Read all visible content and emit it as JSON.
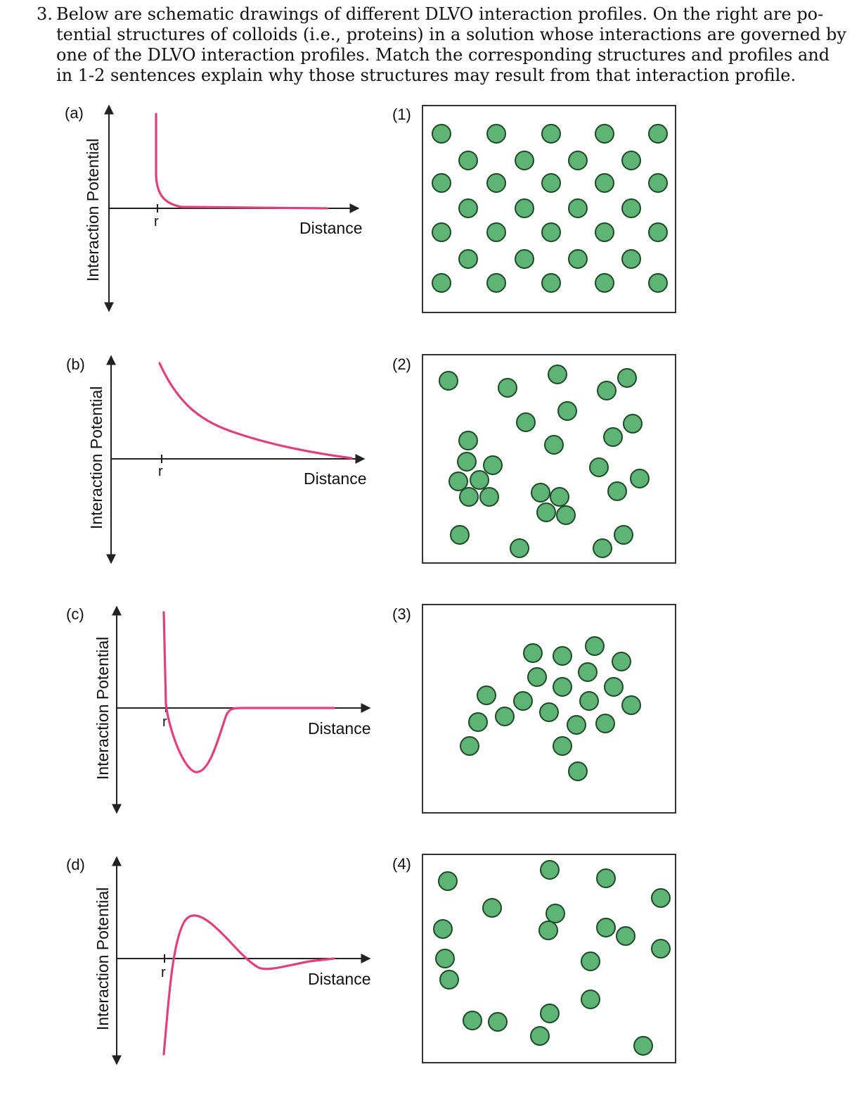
{
  "question": {
    "number": "3.",
    "lines": [
      "Below are schematic drawings of different DLVO interaction profiles. On the right are po-",
      "tential structures of colloids (i.e., proteins) in a solution whose interactions are governed by",
      "one of the DLVO interaction profiles. Match the corresponding structures and profiles and",
      "in 1-2 sentences explain why those structures may result from that interaction profile."
    ]
  },
  "profiles": [
    {
      "label": "(a)",
      "y_axis_label": "Interaction Potential",
      "x_axis_label": "Distance",
      "tick_label": "r",
      "shape": "pure repulsion (hard core)"
    },
    {
      "label": "(b)",
      "y_axis_label": "Interaction Potential",
      "x_axis_label": "Distance",
      "tick_label": "r",
      "shape": "long-range soft repulsion"
    },
    {
      "label": "(c)",
      "y_axis_label": "Interaction Potential",
      "x_axis_label": "Distance",
      "tick_label": "r",
      "shape": "deep attractive well"
    },
    {
      "label": "(d)",
      "y_axis_label": "Interaction Potential",
      "x_axis_label": "Distance",
      "tick_label": "r",
      "shape": "energy barrier with shallow secondary minimum"
    }
  ],
  "structures": [
    {
      "label": "(1)",
      "arrangement": "ordered lattice"
    },
    {
      "label": "(2)",
      "arrangement": "dispersed with small clusters"
    },
    {
      "label": "(3)",
      "arrangement": "single aggregate"
    },
    {
      "label": "(4)",
      "arrangement": "random dispersion"
    }
  ],
  "colors": {
    "curve": "#e0407c",
    "particle_fill": "#5eb474",
    "particle_stroke": "#1f4a2a"
  }
}
